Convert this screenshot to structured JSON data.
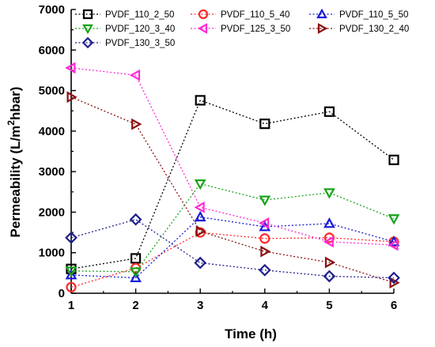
{
  "chart_data": {
    "type": "line",
    "xlabel": "Time (h)",
    "ylabel": {
      "prefix": "Permeability (L/m",
      "sup": "2",
      "suffix": "hbar)"
    },
    "x": [
      1,
      2,
      3,
      4,
      5,
      6
    ],
    "xlim": [
      1,
      6
    ],
    "ylim": [
      0,
      7000
    ],
    "yticks": [
      0,
      1000,
      2000,
      3000,
      4000,
      5000,
      6000,
      7000
    ],
    "grid": false,
    "line_style": "dotted",
    "legend_position": "top",
    "series": [
      {
        "name": "PVDF_110_2_50",
        "color": "#000000",
        "marker": "square",
        "values": [
          600,
          860,
          4760,
          4180,
          4480,
          3290
        ]
      },
      {
        "name": "PVDF_110_5_40",
        "color": "#ff2a2a",
        "marker": "circle",
        "values": [
          150,
          620,
          1500,
          1350,
          1370,
          1270
        ]
      },
      {
        "name": "PVDF_110_5_50",
        "color": "#1a1ad6",
        "marker": "triangle-up",
        "values": [
          450,
          380,
          1880,
          1640,
          1720,
          1270
        ]
      },
      {
        "name": "PVDF_120_3_40",
        "color": "#1aa31a",
        "marker": "triangle-down",
        "values": [
          550,
          530,
          2700,
          2300,
          2480,
          1840
        ]
      },
      {
        "name": "PVDF_125_3_50",
        "color": "#ff2ad4",
        "marker": "triangle-left",
        "values": [
          5560,
          5380,
          2120,
          1730,
          1270,
          1190
        ]
      },
      {
        "name": "PVDF_130_2_40",
        "color": "#8b1111",
        "marker": "triangle-right",
        "values": [
          4840,
          4170,
          1530,
          1030,
          760,
          260
        ]
      },
      {
        "name": "PVDF_130_3_50",
        "color": "#1f1f8c",
        "marker": "diamond",
        "values": [
          1370,
          1820,
          750,
          570,
          420,
          380
        ]
      }
    ]
  }
}
